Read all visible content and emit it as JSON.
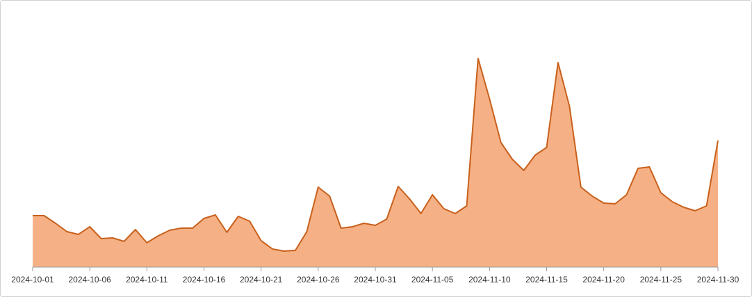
{
  "chart_data": {
    "type": "area",
    "x": [
      "2024-10-01",
      "2024-10-02",
      "2024-10-03",
      "2024-10-04",
      "2024-10-05",
      "2024-10-06",
      "2024-10-07",
      "2024-10-08",
      "2024-10-09",
      "2024-10-10",
      "2024-10-11",
      "2024-10-12",
      "2024-10-13",
      "2024-10-14",
      "2024-10-15",
      "2024-10-16",
      "2024-10-17",
      "2024-10-18",
      "2024-10-19",
      "2024-10-20",
      "2024-10-21",
      "2024-10-22",
      "2024-10-23",
      "2024-10-24",
      "2024-10-25",
      "2024-10-26",
      "2024-10-27",
      "2024-10-28",
      "2024-10-29",
      "2024-10-30",
      "2024-10-31",
      "2024-11-01",
      "2024-11-02",
      "2024-11-03",
      "2024-11-04",
      "2024-11-05",
      "2024-11-06",
      "2024-11-07",
      "2024-11-08",
      "2024-11-09",
      "2024-11-10",
      "2024-11-11",
      "2024-11-12",
      "2024-11-13",
      "2024-11-14",
      "2024-11-15",
      "2024-11-16",
      "2024-11-17",
      "2024-11-18",
      "2024-11-19",
      "2024-11-20",
      "2024-11-21",
      "2024-11-22",
      "2024-11-23",
      "2024-11-24",
      "2024-11-25",
      "2024-11-26",
      "2024-11-27",
      "2024-11-28",
      "2024-11-29",
      "2024-11-30"
    ],
    "values": [
      74,
      74,
      63,
      51,
      47,
      58,
      41,
      42,
      37,
      54,
      35,
      45,
      53,
      56,
      56,
      70,
      75,
      50,
      73,
      66,
      38,
      26,
      23,
      24,
      51,
      115,
      102,
      56,
      58,
      63,
      60,
      69,
      116,
      98,
      77,
      104,
      84,
      77,
      88,
      300,
      242,
      179,
      155,
      139,
      161,
      172,
      294,
      231,
      115,
      102,
      92,
      91,
      104,
      142,
      144,
      107,
      94,
      86,
      81,
      88,
      182
    ],
    "color": "#f5b185",
    "line_color": "#c8601c",
    "xticks": [
      "2024-10-01",
      "2024-10-06",
      "2024-10-11",
      "2024-10-16",
      "2024-10-21",
      "2024-10-26",
      "2024-10-31",
      "2024-11-05",
      "2024-11-10",
      "2024-11-15",
      "2024-11-20",
      "2024-11-25",
      "2024-11-30"
    ]
  }
}
